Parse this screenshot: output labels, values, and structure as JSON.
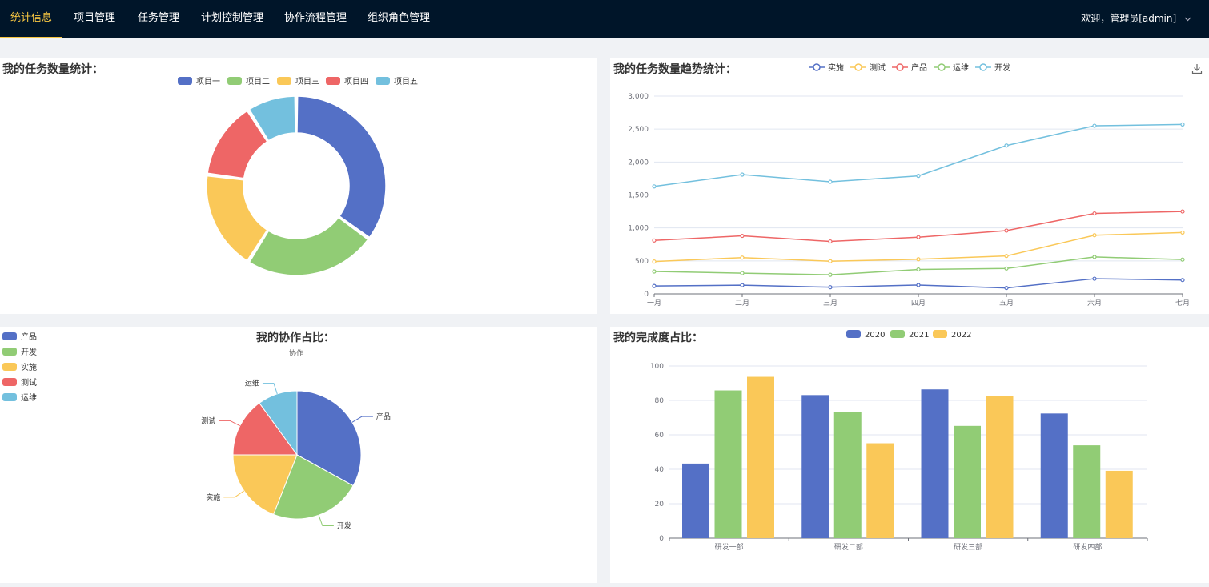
{
  "nav": {
    "items": [
      {
        "label": "统计信息",
        "active": true
      },
      {
        "label": "项目管理",
        "active": false
      },
      {
        "label": "任务管理",
        "active": false
      },
      {
        "label": "计划控制管理",
        "active": false
      },
      {
        "label": "协作流程管理",
        "active": false
      },
      {
        "label": "组织角色管理",
        "active": false
      }
    ],
    "welcome": "欢迎，管理员[admin]",
    "menu_icon": "chevron-down-icon"
  },
  "colors": {
    "nav_bg": "#001529",
    "active_accent": "#f5c542",
    "blue": "#5470c6",
    "green": "#91cc75",
    "yellow": "#fac858",
    "red": "#ee6666",
    "cyan": "#73c0de"
  },
  "panels": {
    "task_count": {
      "title": "我的任务数量统计："
    },
    "task_trend": {
      "title": "我的任务数量趋势统计：",
      "download_icon": "download-icon"
    },
    "collab": {
      "title": "我的协作占比：",
      "subtitle": "协作"
    },
    "completion": {
      "title": "我的完成度占比："
    }
  },
  "chart_data": [
    {
      "type": "pie",
      "variant": "donut",
      "legend": "top-center",
      "categories": [
        "项目一",
        "项目二",
        "项目三",
        "项目四",
        "项目五"
      ],
      "values": [
        35,
        24,
        18,
        14,
        9
      ],
      "colors": [
        "#5470c6",
        "#91cc75",
        "#fac858",
        "#ee6666",
        "#73c0de"
      ]
    },
    {
      "type": "line",
      "legend": "top-center",
      "x": [
        "一月",
        "二月",
        "三月",
        "四月",
        "五月",
        "六月",
        "七月"
      ],
      "ylim": [
        0,
        3000
      ],
      "yticks": [
        "0",
        "500",
        "1,000",
        "1,500",
        "2,000",
        "2,500",
        "3,000"
      ],
      "grid": true,
      "series": [
        {
          "name": "实施",
          "color": "#5470c6",
          "values": [
            120,
            132,
            101,
            134,
            90,
            230,
            210
          ]
        },
        {
          "name": "测试",
          "color": "#fac858",
          "values": [
            490,
            550,
            495,
            525,
            575,
            890,
            930
          ]
        },
        {
          "name": "产品",
          "color": "#ee6666",
          "values": [
            810,
            880,
            795,
            860,
            960,
            1220,
            1250
          ]
        },
        {
          "name": "运维",
          "color": "#91cc75",
          "values": [
            340,
            315,
            290,
            370,
            385,
            560,
            520
          ]
        },
        {
          "name": "开发",
          "color": "#73c0de",
          "values": [
            1630,
            1810,
            1700,
            1790,
            2250,
            2550,
            2570
          ]
        }
      ]
    },
    {
      "type": "pie",
      "legend": "left",
      "categories": [
        "产品",
        "开发",
        "实施",
        "测试",
        "运维"
      ],
      "values": [
        33,
        23,
        19,
        15,
        10
      ],
      "colors": [
        "#5470c6",
        "#91cc75",
        "#fac858",
        "#ee6666",
        "#73c0de"
      ]
    },
    {
      "type": "bar",
      "legend": "top-center",
      "categories": [
        "研发一部",
        "研发二部",
        "研发三部",
        "研发四部"
      ],
      "ylim": [
        0,
        100
      ],
      "yticks": [
        "0",
        "20",
        "40",
        "60",
        "80",
        "100"
      ],
      "grid": true,
      "series": [
        {
          "name": "2020",
          "color": "#5470c6",
          "values": [
            43.3,
            83.1,
            86.4,
            72.4
          ]
        },
        {
          "name": "2021",
          "color": "#91cc75",
          "values": [
            85.8,
            73.4,
            65.2,
            53.9
          ]
        },
        {
          "name": "2022",
          "color": "#fac858",
          "values": [
            93.7,
            55.1,
            82.5,
            39.1
          ]
        }
      ]
    }
  ]
}
